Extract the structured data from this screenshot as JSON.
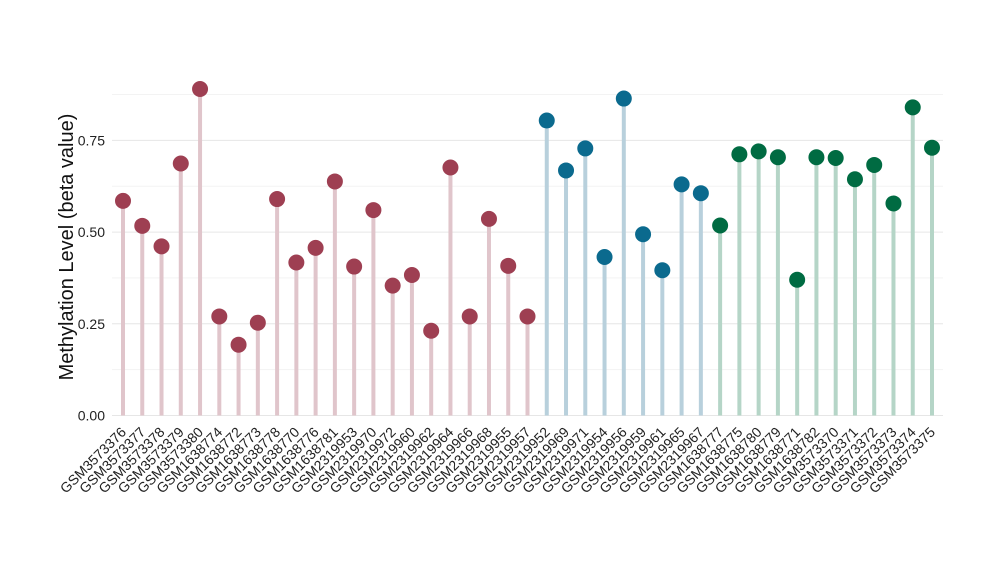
{
  "chart_data": {
    "type": "lollipop",
    "ylabel": "Methylation Level (beta value)",
    "ylim": [
      0,
      0.92
    ],
    "yticks": [
      0.0,
      0.25,
      0.5,
      0.75
    ],
    "ytick_labels": [
      "0.00",
      "0.25",
      "0.50",
      "0.75"
    ],
    "grid": true,
    "group_colors": {
      "A": {
        "point": "#9e3f52",
        "stem": "#e0c5cb"
      },
      "B": {
        "point": "#0b6a8e",
        "stem": "#b8d0dc"
      },
      "C": {
        "point": "#006b42",
        "stem": "#b5d5c7"
      }
    },
    "points": [
      {
        "label": "GSM3573376",
        "value": 0.585,
        "group": "A"
      },
      {
        "label": "GSM3573377",
        "value": 0.517,
        "group": "A"
      },
      {
        "label": "GSM3573378",
        "value": 0.461,
        "group": "A"
      },
      {
        "label": "GSM3573379",
        "value": 0.687,
        "group": "A"
      },
      {
        "label": "GSM3573380",
        "value": 0.89,
        "group": "A"
      },
      {
        "label": "GSM1638774",
        "value": 0.27,
        "group": "A"
      },
      {
        "label": "GSM1638772",
        "value": 0.193,
        "group": "A"
      },
      {
        "label": "GSM1638773",
        "value": 0.253,
        "group": "A"
      },
      {
        "label": "GSM1638778",
        "value": 0.59,
        "group": "A"
      },
      {
        "label": "GSM1638770",
        "value": 0.417,
        "group": "A"
      },
      {
        "label": "GSM1638776",
        "value": 0.457,
        "group": "A"
      },
      {
        "label": "GSM1638781",
        "value": 0.638,
        "group": "A"
      },
      {
        "label": "GSM2319953",
        "value": 0.406,
        "group": "A"
      },
      {
        "label": "GSM2319970",
        "value": 0.56,
        "group": "A"
      },
      {
        "label": "GSM2319972",
        "value": 0.354,
        "group": "A"
      },
      {
        "label": "GSM2319960",
        "value": 0.383,
        "group": "A"
      },
      {
        "label": "GSM2319962",
        "value": 0.231,
        "group": "A"
      },
      {
        "label": "GSM2319964",
        "value": 0.676,
        "group": "A"
      },
      {
        "label": "GSM2319966",
        "value": 0.27,
        "group": "A"
      },
      {
        "label": "GSM2319968",
        "value": 0.536,
        "group": "A"
      },
      {
        "label": "GSM2319955",
        "value": 0.408,
        "group": "A"
      },
      {
        "label": "GSM2319957",
        "value": 0.27,
        "group": "A"
      },
      {
        "label": "GSM2319952",
        "value": 0.804,
        "group": "B"
      },
      {
        "label": "GSM2319969",
        "value": 0.668,
        "group": "B"
      },
      {
        "label": "GSM2319971",
        "value": 0.728,
        "group": "B"
      },
      {
        "label": "GSM2319954",
        "value": 0.432,
        "group": "B"
      },
      {
        "label": "GSM2319956",
        "value": 0.864,
        "group": "B"
      },
      {
        "label": "GSM2319959",
        "value": 0.494,
        "group": "B"
      },
      {
        "label": "GSM2319961",
        "value": 0.396,
        "group": "B"
      },
      {
        "label": "GSM2319965",
        "value": 0.63,
        "group": "B"
      },
      {
        "label": "GSM2319967",
        "value": 0.606,
        "group": "B"
      },
      {
        "label": "GSM1638777",
        "value": 0.518,
        "group": "C"
      },
      {
        "label": "GSM1638775",
        "value": 0.712,
        "group": "C"
      },
      {
        "label": "GSM1638780",
        "value": 0.72,
        "group": "C"
      },
      {
        "label": "GSM1638779",
        "value": 0.704,
        "group": "C"
      },
      {
        "label": "GSM1638771",
        "value": 0.37,
        "group": "C"
      },
      {
        "label": "GSM1638782",
        "value": 0.704,
        "group": "C"
      },
      {
        "label": "GSM3573370",
        "value": 0.702,
        "group": "C"
      },
      {
        "label": "GSM3573371",
        "value": 0.644,
        "group": "C"
      },
      {
        "label": "GSM3573372",
        "value": 0.683,
        "group": "C"
      },
      {
        "label": "GSM3573373",
        "value": 0.578,
        "group": "C"
      },
      {
        "label": "GSM3573374",
        "value": 0.84,
        "group": "C"
      },
      {
        "label": "GSM3573375",
        "value": 0.73,
        "group": "C"
      }
    ]
  }
}
